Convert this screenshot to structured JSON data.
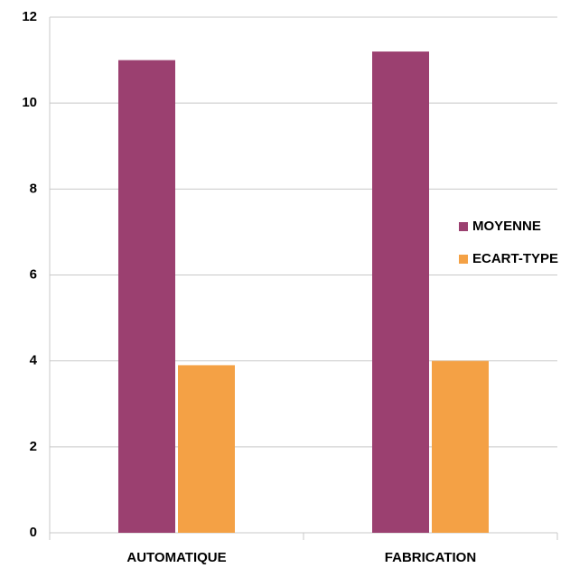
{
  "chart_data": {
    "type": "bar",
    "categories": [
      "AUTOMATIQUE",
      "FABRICATION"
    ],
    "series": [
      {
        "name": "MOYENNE",
        "color": "#9b4070",
        "values": [
          11.0,
          11.2
        ]
      },
      {
        "name": "ECART-TYPE",
        "color": "#f4a145",
        "values": [
          3.9,
          4.0
        ]
      }
    ],
    "ylim": [
      0,
      12
    ],
    "yticks": [
      0,
      2,
      4,
      6,
      8,
      10,
      12
    ],
    "grid": true,
    "legend": "right"
  }
}
